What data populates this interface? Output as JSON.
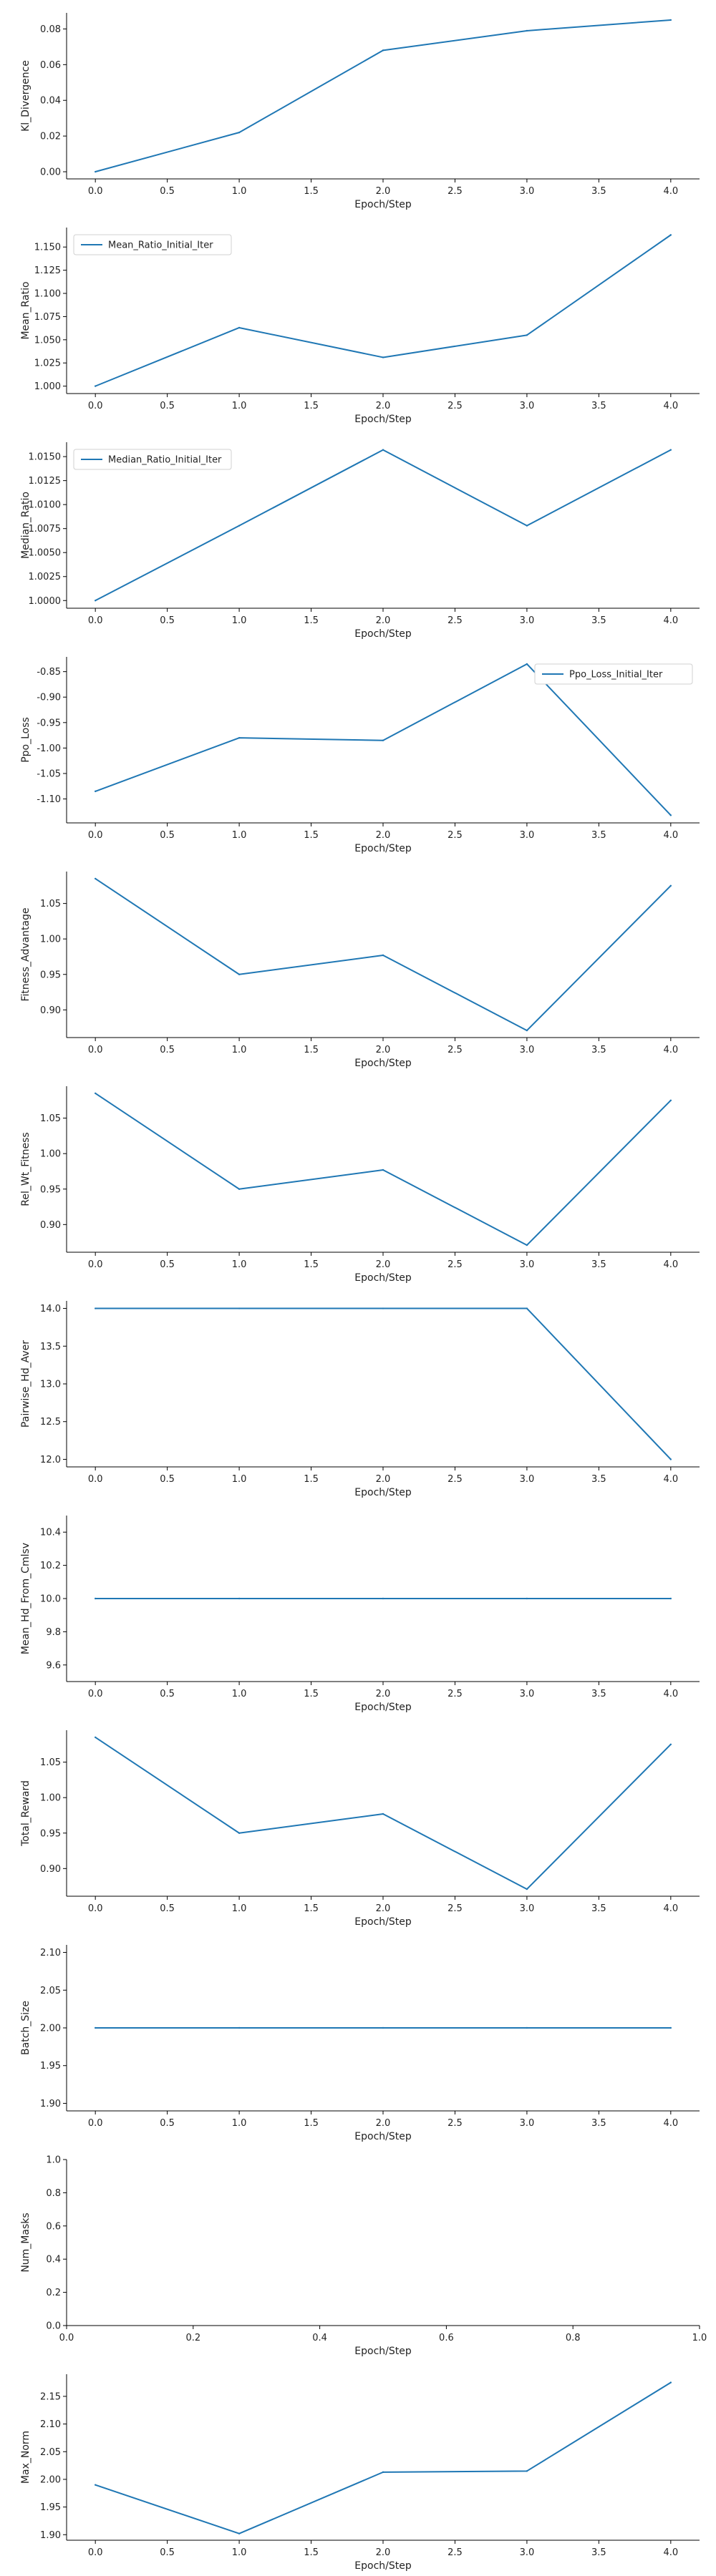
{
  "colors": {
    "line": "#1f77b4",
    "axis": "#000000",
    "text": "#222222",
    "legend_border": "#d0d0d0"
  },
  "chart_data": [
    {
      "type": "line",
      "xlabel": "Epoch/Step",
      "ylabel": "Kl_Divergence",
      "x": [
        0,
        1,
        2,
        3,
        4
      ],
      "series": [
        {
          "values": [
            0.0,
            0.022,
            0.068,
            0.079,
            0.085
          ]
        }
      ],
      "xlim": [
        -0.2,
        4.2
      ],
      "ylim": [
        -0.004,
        0.089
      ],
      "xticks": [
        "0.0",
        "0.5",
        "1.0",
        "1.5",
        "2.0",
        "2.5",
        "3.0",
        "3.5",
        "4.0"
      ],
      "yticks": [
        "0.00",
        "0.02",
        "0.04",
        "0.06",
        "0.08"
      ],
      "grid": false
    },
    {
      "type": "line",
      "xlabel": "Epoch/Step",
      "ylabel": "Mean_Ratio",
      "x": [
        0,
        1,
        2,
        3,
        4
      ],
      "series": [
        {
          "name": "Mean_Ratio_Initial_Iter",
          "values": [
            1.0,
            1.063,
            1.031,
            1.055,
            1.163
          ]
        }
      ],
      "xlim": [
        -0.2,
        4.2
      ],
      "ylim": [
        0.992,
        1.171
      ],
      "xticks": [
        "0.0",
        "0.5",
        "1.0",
        "1.5",
        "2.0",
        "2.5",
        "3.0",
        "3.5",
        "4.0"
      ],
      "yticks": [
        "1.000",
        "1.025",
        "1.050",
        "1.075",
        "1.100",
        "1.125",
        "1.150"
      ],
      "legend": "top-left",
      "grid": false
    },
    {
      "type": "line",
      "xlabel": "Epoch/Step",
      "ylabel": "Median_Ratio",
      "x": [
        0,
        1,
        2,
        3,
        4
      ],
      "series": [
        {
          "name": "Median_Ratio_Initial_Iter",
          "values": [
            1.0,
            1.0078,
            1.0157,
            1.0078,
            1.0157
          ]
        }
      ],
      "xlim": [
        -0.2,
        4.2
      ],
      "ylim": [
        0.9992,
        1.0165
      ],
      "xticks": [
        "0.0",
        "0.5",
        "1.0",
        "1.5",
        "2.0",
        "2.5",
        "3.0",
        "3.5",
        "4.0"
      ],
      "yticks": [
        "1.0000",
        "1.0025",
        "1.0050",
        "1.0075",
        "1.0100",
        "1.0125",
        "1.0150"
      ],
      "legend": "top-left",
      "grid": false
    },
    {
      "type": "line",
      "xlabel": "Epoch/Step",
      "ylabel": "Ppo_Loss",
      "x": [
        0,
        1,
        2,
        3,
        4
      ],
      "series": [
        {
          "name": "Ppo_Loss_Initial_Iter",
          "values": [
            -1.085,
            -0.98,
            -0.985,
            -0.835,
            -1.132
          ]
        }
      ],
      "xlim": [
        -0.2,
        4.2
      ],
      "ylim": [
        -1.147,
        -0.821
      ],
      "xticks": [
        "0.0",
        "0.5",
        "1.0",
        "1.5",
        "2.0",
        "2.5",
        "3.0",
        "3.5",
        "4.0"
      ],
      "yticks": [
        "-1.10",
        "-1.05",
        "-1.00",
        "-0.95",
        "-0.90",
        "-0.85"
      ],
      "legend": "top-right",
      "grid": false
    },
    {
      "type": "line",
      "xlabel": "Epoch/Step",
      "ylabel": "Fitness_Advantage",
      "x": [
        0,
        1,
        2,
        3,
        4
      ],
      "series": [
        {
          "values": [
            1.085,
            0.95,
            0.977,
            0.871,
            1.075
          ]
        }
      ],
      "xlim": [
        -0.2,
        4.2
      ],
      "ylim": [
        0.861,
        1.095
      ],
      "xticks": [
        "0.0",
        "0.5",
        "1.0",
        "1.5",
        "2.0",
        "2.5",
        "3.0",
        "3.5",
        "4.0"
      ],
      "yticks": [
        "0.90",
        "0.95",
        "1.00",
        "1.05"
      ],
      "grid": false
    },
    {
      "type": "line",
      "xlabel": "Epoch/Step",
      "ylabel": "Rel_Wt_Fitness",
      "x": [
        0,
        1,
        2,
        3,
        4
      ],
      "series": [
        {
          "values": [
            1.085,
            0.95,
            0.977,
            0.871,
            1.075
          ]
        }
      ],
      "xlim": [
        -0.2,
        4.2
      ],
      "ylim": [
        0.861,
        1.095
      ],
      "xticks": [
        "0.0",
        "0.5",
        "1.0",
        "1.5",
        "2.0",
        "2.5",
        "3.0",
        "3.5",
        "4.0"
      ],
      "yticks": [
        "0.90",
        "0.95",
        "1.00",
        "1.05"
      ],
      "grid": false
    },
    {
      "type": "line",
      "xlabel": "Epoch/Step",
      "ylabel": "Pairwise_Hd_Aver",
      "x": [
        0,
        1,
        2,
        3,
        4
      ],
      "series": [
        {
          "values": [
            14.0,
            14.0,
            14.0,
            14.0,
            12.0
          ]
        }
      ],
      "xlim": [
        -0.2,
        4.2
      ],
      "ylim": [
        11.9,
        14.1
      ],
      "xticks": [
        "0.0",
        "0.5",
        "1.0",
        "1.5",
        "2.0",
        "2.5",
        "3.0",
        "3.5",
        "4.0"
      ],
      "yticks": [
        "12.0",
        "12.5",
        "13.0",
        "13.5",
        "14.0"
      ],
      "grid": false
    },
    {
      "type": "line",
      "xlabel": "Epoch/Step",
      "ylabel": "Mean_Hd_From_Cmlsv",
      "x": [
        0,
        1,
        2,
        3,
        4
      ],
      "series": [
        {
          "values": [
            10.0,
            10.0,
            10.0,
            10.0,
            10.0
          ]
        }
      ],
      "xlim": [
        -0.2,
        4.2
      ],
      "ylim": [
        9.5,
        10.5
      ],
      "xticks": [
        "0.0",
        "0.5",
        "1.0",
        "1.5",
        "2.0",
        "2.5",
        "3.0",
        "3.5",
        "4.0"
      ],
      "yticks": [
        "9.6",
        "9.8",
        "10.0",
        "10.2",
        "10.4"
      ],
      "grid": false
    },
    {
      "type": "line",
      "xlabel": "Epoch/Step",
      "ylabel": "Total_Reward",
      "x": [
        0,
        1,
        2,
        3,
        4
      ],
      "series": [
        {
          "values": [
            1.085,
            0.95,
            0.977,
            0.871,
            1.075
          ]
        }
      ],
      "xlim": [
        -0.2,
        4.2
      ],
      "ylim": [
        0.861,
        1.095
      ],
      "xticks": [
        "0.0",
        "0.5",
        "1.0",
        "1.5",
        "2.0",
        "2.5",
        "3.0",
        "3.5",
        "4.0"
      ],
      "yticks": [
        "0.90",
        "0.95",
        "1.00",
        "1.05"
      ],
      "grid": false
    },
    {
      "type": "line",
      "xlabel": "Epoch/Step",
      "ylabel": "Batch_Size",
      "x": [
        0,
        1,
        2,
        3,
        4
      ],
      "series": [
        {
          "values": [
            2.0,
            2.0,
            2.0,
            2.0,
            2.0
          ]
        }
      ],
      "xlim": [
        -0.2,
        4.2
      ],
      "ylim": [
        1.89,
        2.11
      ],
      "xticks": [
        "0.0",
        "0.5",
        "1.0",
        "1.5",
        "2.0",
        "2.5",
        "3.0",
        "3.5",
        "4.0"
      ],
      "yticks": [
        "1.90",
        "1.95",
        "2.00",
        "2.05",
        "2.10"
      ],
      "grid": false
    },
    {
      "type": "line",
      "xlabel": "Epoch/Step",
      "ylabel": "Num_Masks",
      "x": [],
      "series": [],
      "xlim": [
        0,
        1
      ],
      "ylim": [
        0,
        1
      ],
      "xticks": [
        "0.0",
        "0.2",
        "0.4",
        "0.6",
        "0.8",
        "1.0"
      ],
      "yticks": [
        "0.0",
        "0.2",
        "0.4",
        "0.6",
        "0.8",
        "1.0"
      ],
      "grid": false
    },
    {
      "type": "line",
      "xlabel": "Epoch/Step",
      "ylabel": "Max_Norm",
      "x": [
        0,
        1,
        2,
        3,
        4
      ],
      "series": [
        {
          "values": [
            1.99,
            1.902,
            2.013,
            2.015,
            2.175
          ]
        }
      ],
      "xlim": [
        -0.2,
        4.2
      ],
      "ylim": [
        1.89,
        2.19
      ],
      "xticks": [
        "0.0",
        "0.5",
        "1.0",
        "1.5",
        "2.0",
        "2.5",
        "3.0",
        "3.5",
        "4.0"
      ],
      "yticks": [
        "1.90",
        "1.95",
        "2.00",
        "2.05",
        "2.10",
        "2.15"
      ],
      "grid": false
    }
  ]
}
